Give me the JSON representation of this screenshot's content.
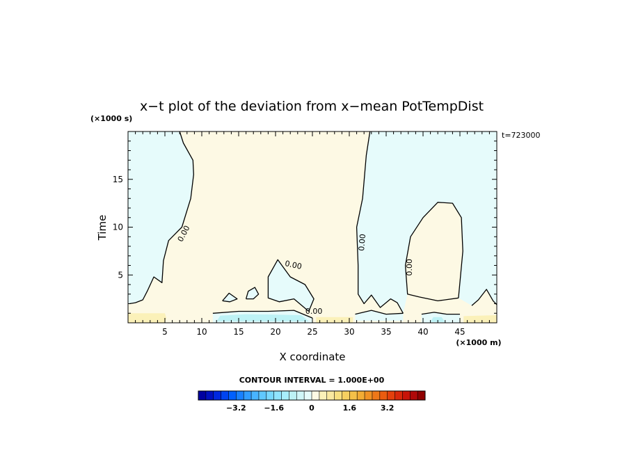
{
  "chart_data": {
    "type": "heatmap",
    "title": "x−t plot of the deviation from x−mean PotTempDist",
    "xlabel": "X coordinate",
    "ylabel": "Time",
    "x_unit": "(×1000 m)",
    "y_unit": "(×1000 s)",
    "time_stamp": "t=723000",
    "xlim": [
      0,
      50
    ],
    "ylim": [
      0,
      20
    ],
    "x_ticks": [
      5,
      10,
      15,
      20,
      25,
      30,
      35,
      40,
      45
    ],
    "y_ticks": [
      5,
      10,
      15
    ],
    "contour_interval_text": "CONTOUR INTERVAL = 1.000E+00",
    "contour_label": "0.00",
    "contour_labels": [
      {
        "text": "0.00",
        "x": 7.6,
        "y": 9.3,
        "rot": -62
      },
      {
        "text": "0.00",
        "x": 22.4,
        "y": 6.0,
        "rot": 12
      },
      {
        "text": "0.00",
        "x": 25.2,
        "y": 1.15,
        "rot": 0
      },
      {
        "text": "0.00",
        "x": 31.8,
        "y": 8.4,
        "rot": -85
      },
      {
        "text": "0.00",
        "x": 38.2,
        "y": 5.8,
        "rot": -90
      }
    ],
    "zero_contour": [
      [
        [
          7.0,
          20
        ],
        [
          7.5,
          18.8
        ],
        [
          8.8,
          17.0
        ],
        [
          8.9,
          15.5
        ],
        [
          8.5,
          13.0
        ],
        [
          7.3,
          10.0
        ],
        [
          5.5,
          8.6
        ],
        [
          4.8,
          6.5
        ],
        [
          4.6,
          4.2
        ],
        [
          3.5,
          4.8
        ],
        [
          2.6,
          3.3
        ],
        [
          2.0,
          2.4
        ],
        [
          1.0,
          2.1
        ],
        [
          0.2,
          2.0
        ]
      ],
      [
        [
          24.5,
          1.2
        ],
        [
          25.2,
          2.5
        ],
        [
          24.0,
          4.0
        ],
        [
          22.0,
          4.8
        ],
        [
          20.3,
          6.6
        ],
        [
          19.0,
          4.8
        ],
        [
          19.0,
          2.6
        ],
        [
          20.5,
          2.2
        ],
        [
          22.5,
          2.5
        ],
        [
          24.5,
          1.2
        ]
      ],
      [
        [
          32.8,
          20
        ],
        [
          32.3,
          17.5
        ],
        [
          31.8,
          13.0
        ],
        [
          31.0,
          10.0
        ],
        [
          31.2,
          6.0
        ],
        [
          31.2,
          3.0
        ],
        [
          32.0,
          2.0
        ],
        [
          33.0,
          2.9
        ],
        [
          34.2,
          1.6
        ],
        [
          35.6,
          2.5
        ],
        [
          36.5,
          2.1
        ],
        [
          37.3,
          1.0
        ]
      ],
      [
        [
          44.8,
          2.6
        ],
        [
          45.4,
          7.5
        ],
        [
          45.2,
          11.0
        ],
        [
          44.0,
          12.5
        ],
        [
          42.0,
          12.6
        ],
        [
          40.0,
          11.0
        ],
        [
          38.3,
          9.0
        ],
        [
          37.6,
          6.0
        ],
        [
          37.9,
          3.0
        ],
        [
          39.5,
          2.7
        ],
        [
          42.0,
          2.3
        ],
        [
          44.8,
          2.6
        ]
      ],
      [
        [
          11.5,
          1.0
        ],
        [
          15.0,
          1.2
        ],
        [
          19.0,
          1.2
        ],
        [
          22.5,
          1.3
        ],
        [
          25.0,
          0.5
        ]
      ],
      [
        [
          12.8,
          2.3
        ],
        [
          13.7,
          3.1
        ],
        [
          14.8,
          2.5
        ],
        [
          13.8,
          2.2
        ],
        [
          12.8,
          2.3
        ]
      ],
      [
        [
          16.0,
          2.5
        ],
        [
          16.3,
          3.3
        ],
        [
          17.2,
          3.7
        ],
        [
          17.7,
          3.0
        ],
        [
          17.0,
          2.5
        ],
        [
          16.0,
          2.5
        ]
      ],
      [
        [
          46.6,
          1.8
        ],
        [
          47.5,
          2.4
        ],
        [
          48.6,
          3.5
        ],
        [
          49.5,
          2.3
        ],
        [
          50.0,
          1.9
        ]
      ],
      [
        [
          30.8,
          0.9
        ],
        [
          33.0,
          1.3
        ],
        [
          35.0,
          0.9
        ],
        [
          37.3,
          1.0
        ]
      ],
      [
        [
          39.8,
          0.9
        ],
        [
          41.5,
          1.1
        ],
        [
          43.2,
          0.9
        ],
        [
          45.0,
          0.9
        ]
      ]
    ],
    "regions": [
      {
        "fill": "#e6fbfb",
        "polygon": [
          [
            0,
            20
          ],
          [
            7.0,
            20
          ],
          [
            7.5,
            18.8
          ],
          [
            8.8,
            17.0
          ],
          [
            8.9,
            15.5
          ],
          [
            8.5,
            13.0
          ],
          [
            7.3,
            10.0
          ],
          [
            5.5,
            8.6
          ],
          [
            4.8,
            6.5
          ],
          [
            4.6,
            4.2
          ],
          [
            3.5,
            4.8
          ],
          [
            2.6,
            3.3
          ],
          [
            2.0,
            2.4
          ],
          [
            1.0,
            2.1
          ],
          [
            0,
            2.0
          ]
        ]
      },
      {
        "fill": "#e6fbfb",
        "polygon": [
          [
            32.8,
            20
          ],
          [
            50,
            20
          ],
          [
            50,
            1.9
          ],
          [
            49.5,
            2.3
          ],
          [
            48.6,
            3.5
          ],
          [
            47.5,
            2.4
          ],
          [
            46.6,
            1.8
          ],
          [
            44.8,
            2.6
          ],
          [
            42.0,
            2.3
          ],
          [
            39.5,
            2.7
          ],
          [
            37.9,
            3.0
          ],
          [
            37.3,
            1.0
          ],
          [
            36.5,
            2.1
          ],
          [
            35.6,
            2.5
          ],
          [
            34.2,
            1.6
          ],
          [
            33.0,
            2.9
          ],
          [
            32.0,
            2.0
          ],
          [
            31.2,
            3.0
          ],
          [
            31.2,
            6.0
          ],
          [
            31.0,
            10.0
          ],
          [
            31.8,
            13.0
          ],
          [
            32.3,
            17.5
          ]
        ]
      },
      {
        "fill": "#fdf9e4",
        "polygon": [
          [
            44.8,
            2.6
          ],
          [
            45.4,
            7.5
          ],
          [
            45.2,
            11.0
          ],
          [
            44.0,
            12.5
          ],
          [
            42.0,
            12.6
          ],
          [
            40.0,
            11.0
          ],
          [
            38.3,
            9.0
          ],
          [
            37.6,
            6.0
          ],
          [
            37.9,
            3.0
          ],
          [
            39.5,
            2.7
          ],
          [
            42.0,
            2.3
          ]
        ]
      },
      {
        "fill": "#e6fbfb",
        "polygon": [
          [
            24.5,
            1.2
          ],
          [
            25.2,
            2.5
          ],
          [
            24.0,
            4.0
          ],
          [
            22.0,
            4.8
          ],
          [
            20.3,
            6.6
          ],
          [
            19.0,
            4.8
          ],
          [
            19.0,
            2.6
          ],
          [
            20.5,
            2.2
          ],
          [
            22.5,
            2.5
          ]
        ]
      },
      {
        "fill": "#e6fbfb",
        "polygon": [
          [
            12.8,
            2.3
          ],
          [
            13.7,
            3.1
          ],
          [
            14.8,
            2.5
          ],
          [
            13.8,
            2.2
          ]
        ]
      },
      {
        "fill": "#e6fbfb",
        "polygon": [
          [
            16.0,
            2.5
          ],
          [
            16.3,
            3.3
          ],
          [
            17.2,
            3.7
          ],
          [
            17.7,
            3.0
          ],
          [
            17.0,
            2.5
          ]
        ]
      },
      {
        "fill": "#e6fbfb",
        "polygon": [
          [
            11.5,
            0
          ],
          [
            11.5,
            1.0
          ],
          [
            15.0,
            1.2
          ],
          [
            19.0,
            1.2
          ],
          [
            22.5,
            1.3
          ],
          [
            25.0,
            0.5
          ],
          [
            25.0,
            0
          ]
        ]
      },
      {
        "fill": "#bdf2f5",
        "polygon": [
          [
            12.0,
            0.15
          ],
          [
            12.5,
            0.75
          ],
          [
            16.0,
            0.9
          ],
          [
            20.0,
            0.85
          ],
          [
            23.5,
            0.8
          ],
          [
            24.5,
            0.15
          ]
        ]
      },
      {
        "fill": "#e6fbfb",
        "polygon": [
          [
            30.8,
            0.2
          ],
          [
            30.8,
            0.9
          ],
          [
            33.0,
            1.3
          ],
          [
            35.0,
            0.9
          ],
          [
            37.3,
            1.0
          ],
          [
            37.3,
            0.2
          ]
        ]
      },
      {
        "fill": "#e6fbfb",
        "polygon": [
          [
            39.8,
            0
          ],
          [
            39.8,
            0.9
          ],
          [
            41.5,
            1.1
          ],
          [
            43.2,
            0.9
          ],
          [
            45.0,
            0.9
          ],
          [
            45.0,
            0
          ]
        ]
      },
      {
        "fill": "#bdf2f5",
        "polygon": [
          [
            41.0,
            0.1
          ],
          [
            41.4,
            0.6
          ],
          [
            42.5,
            0.6
          ],
          [
            43.0,
            0.1
          ]
        ]
      },
      {
        "fill": "#fbf1b9",
        "polygon": [
          [
            0,
            0
          ],
          [
            0,
            1.0
          ],
          [
            5.0,
            1.0
          ],
          [
            5.2,
            0.5
          ],
          [
            5.0,
            0
          ]
        ]
      },
      {
        "fill": "#fbf1b9",
        "polygon": [
          [
            25.5,
            0
          ],
          [
            25.5,
            0.6
          ],
          [
            30.5,
            0.6
          ],
          [
            30.5,
            0
          ]
        ]
      },
      {
        "fill": "#fbf1b9",
        "polygon": [
          [
            45.5,
            0
          ],
          [
            45.5,
            0.7
          ],
          [
            50,
            0.8
          ],
          [
            50,
            0
          ]
        ]
      }
    ],
    "colorbar": {
      "colors": [
        "#0000a0",
        "#0010c0",
        "#0028e0",
        "#0044f0",
        "#0060ff",
        "#1880ff",
        "#309cff",
        "#48b4ff",
        "#60c8ff",
        "#78d8ff",
        "#90e4ff",
        "#a8eefc",
        "#bdf2f5",
        "#d0f6f8",
        "#e6fbfb",
        "#fdf9e4",
        "#fbf1b9",
        "#fae9a0",
        "#f8e080",
        "#f6d060",
        "#f4c048",
        "#f2ac34",
        "#f09224",
        "#ee7818",
        "#ea5c10",
        "#e4400c",
        "#d8280a",
        "#c81408",
        "#b00808",
        "#900000"
      ],
      "range": [
        -4.8,
        4.8
      ],
      "tick_values": [
        -3.2,
        -1.6,
        0,
        1.6,
        3.2
      ],
      "tick_labels": [
        "−3.2",
        "−1.6",
        "0",
        "1.6",
        "3.2"
      ]
    }
  }
}
